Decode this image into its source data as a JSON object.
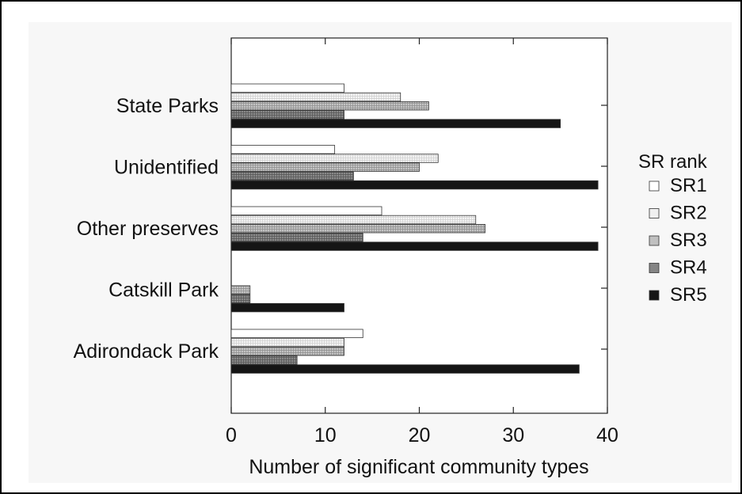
{
  "chart_data": {
    "type": "bar",
    "orientation": "horizontal",
    "categories": [
      "State Parks",
      "Unidentified",
      "Other preserves",
      "Catskill Park",
      "Adirondack Park"
    ],
    "series": [
      {
        "name": "SR1",
        "values": [
          12,
          11,
          16,
          0,
          14
        ],
        "color": "#ffffff"
      },
      {
        "name": "SR2",
        "values": [
          18,
          22,
          26,
          0,
          12
        ],
        "color": "#e8e8e8"
      },
      {
        "name": "SR3",
        "values": [
          21,
          20,
          27,
          2,
          12
        ],
        "color": "#b8b8b8"
      },
      {
        "name": "SR4",
        "values": [
          12,
          13,
          14,
          2,
          7
        ],
        "color": "#7a7a7a"
      },
      {
        "name": "SR5",
        "values": [
          35,
          39,
          39,
          12,
          37
        ],
        "color": "#111111"
      }
    ],
    "xlabel": "Number of significant community types",
    "ylabel": "",
    "xlim": [
      0,
      40
    ],
    "xticks": [
      "0",
      "10",
      "20",
      "30",
      "40"
    ],
    "legend_title": "SR rank",
    "legend_position": "right",
    "grid": false
  }
}
